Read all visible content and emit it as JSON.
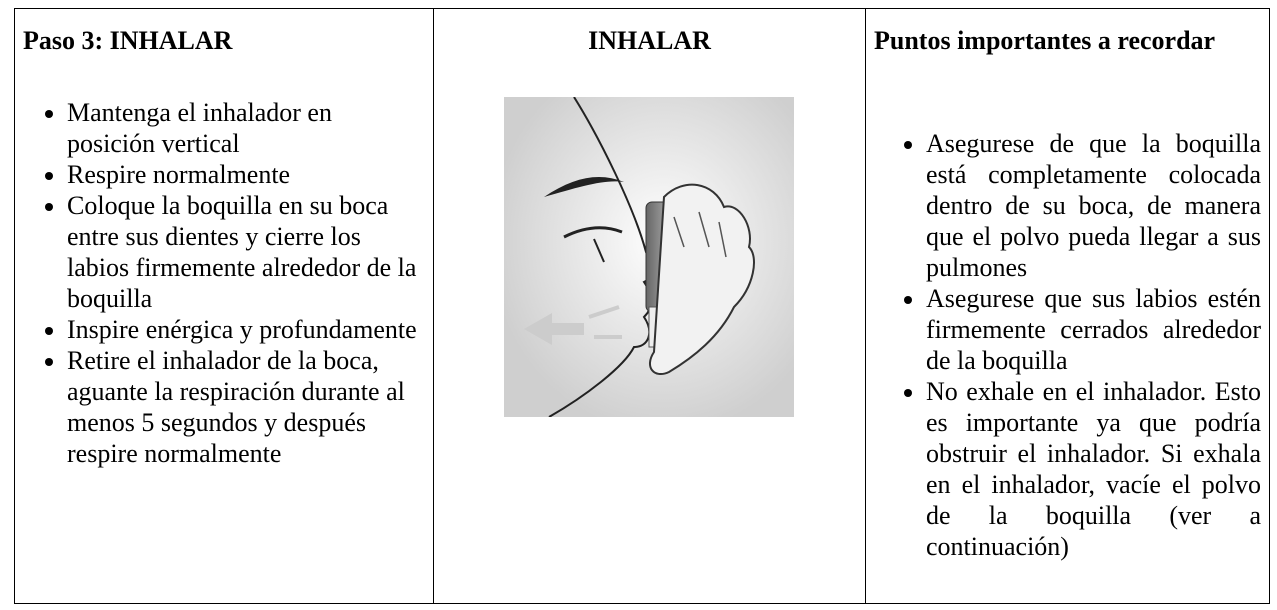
{
  "table": {
    "columns": [
      {
        "header": "Paso 3: INHALAR",
        "bullets": [
          "Mantenga el inhalador en posición vertical",
          "Respire normalmente",
          "Coloque la boquilla en su boca entre sus dientes y cierre los labios firmemente alrededor de la boquilla",
          "Inspire enérgica y profundamente",
          "Retire el inhalador de la boca, aguante la respiración durante al menos 5 segundos y después respire normalmente"
        ]
      },
      {
        "header": "INHALAR"
      },
      {
        "header": "Puntos importantes a recordar",
        "bullets": [
          "Asegurese de que la boquilla está completamente colocada dentro de su boca, de manera que el polvo pueda llegar a sus pulmones",
          "Asegurese que sus labios estén firmemente cerrados alrededor de la boquilla",
          "No exhale en el inhalador. Esto es importante ya que podría obstruir el inhalador. Si exhala en el inhalador, vacíe el polvo de la boquilla (ver a continuación)"
        ]
      }
    ]
  }
}
